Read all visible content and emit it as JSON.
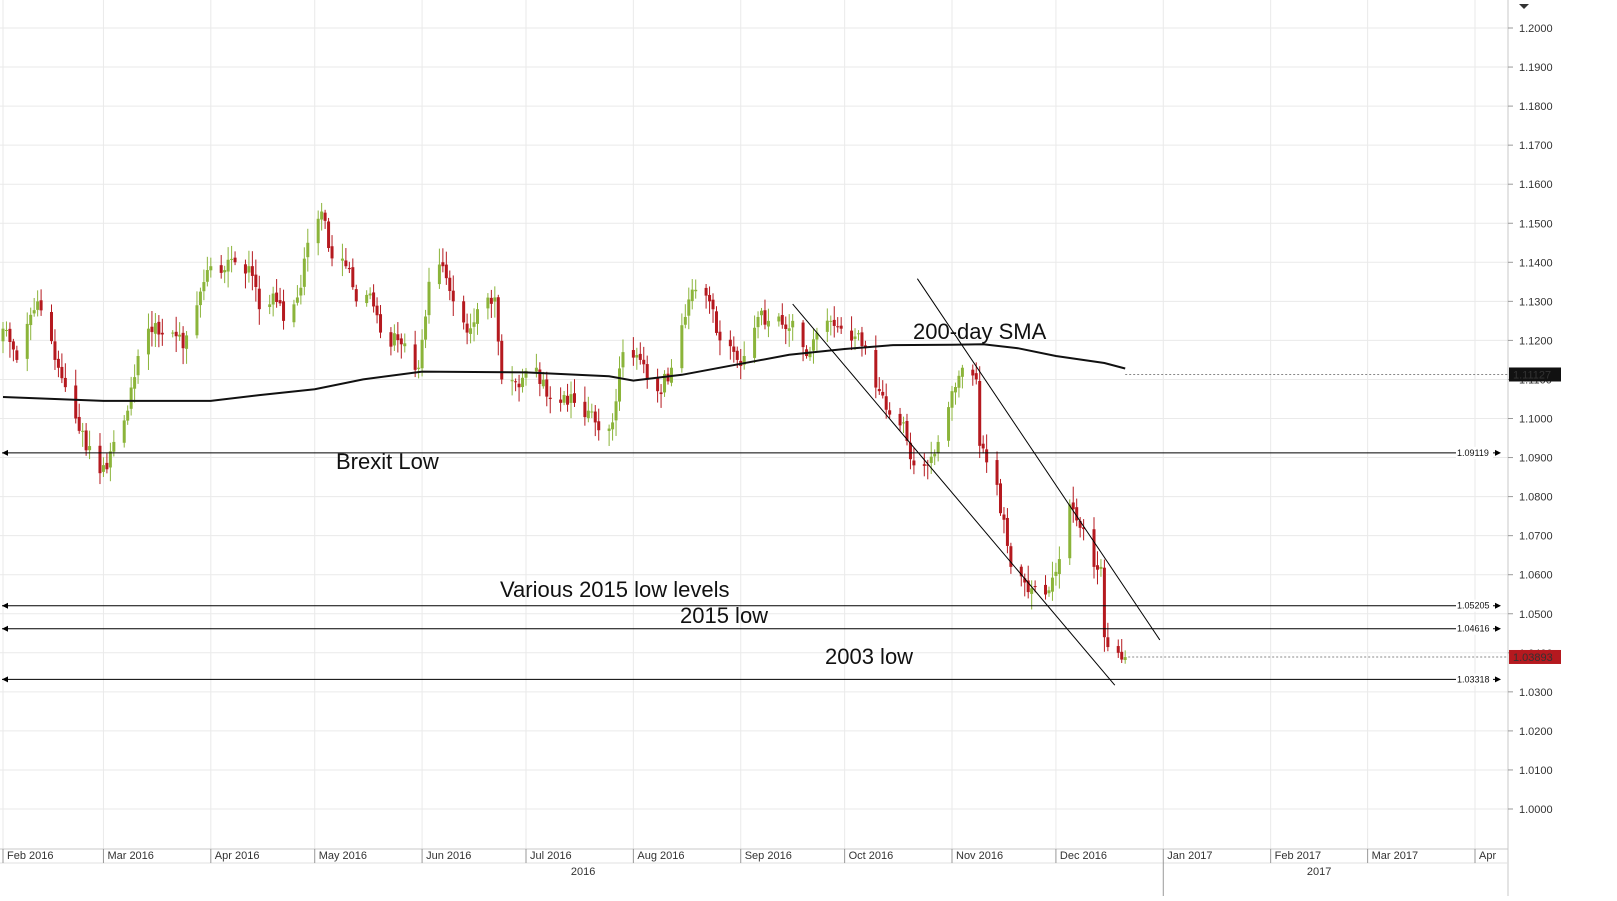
{
  "chart_data": {
    "type": "candlestick",
    "instrument_note": "",
    "y_axis": {
      "range": [
        0.9905,
        1.2205
      ],
      "ticks": [
        "1.0000",
        "1.0100",
        "1.0200",
        "1.0300",
        "1.0400",
        "1.0500",
        "1.0600",
        "1.0700",
        "1.0800",
        "1.0900",
        "1.1000",
        "1.1100",
        "1.1200",
        "1.1300",
        "1.1400",
        "1.1500",
        "1.1600",
        "1.1700",
        "1.1800",
        "1.1900",
        "1.2000"
      ],
      "position": "right"
    },
    "x_axis": {
      "months": [
        "Feb 2016",
        "Mar 2016",
        "Apr 2016",
        "May 2016",
        "Jun 2016",
        "Jul 2016",
        "Aug 2016",
        "Sep 2016",
        "Oct 2016",
        "Nov 2016",
        "Dec 2016",
        "Jan 2017",
        "Feb 2017",
        "Mar 2017",
        "Apr"
      ],
      "years": [
        "2016",
        "2017"
      ]
    },
    "grid": true,
    "anchor_points": [
      [
        "2016-02-01",
        1.123
      ],
      [
        "2016-02-05",
        1.115
      ],
      [
        "2016-02-11",
        1.13
      ],
      [
        "2016-02-16",
        1.115
      ],
      [
        "2016-02-22",
        1.1
      ],
      [
        "2016-02-29",
        1.086
      ],
      [
        "2016-03-02",
        1.087
      ],
      [
        "2016-03-08",
        1.102
      ],
      [
        "2016-03-11",
        1.116
      ],
      [
        "2016-03-14",
        1.123
      ],
      [
        "2016-03-21",
        1.122
      ],
      [
        "2016-03-24",
        1.118
      ],
      [
        "2016-03-28",
        1.129
      ],
      [
        "2016-04-01",
        1.139
      ],
      [
        "2016-04-05",
        1.138
      ],
      [
        "2016-04-08",
        1.14
      ],
      [
        "2016-04-12",
        1.139
      ],
      [
        "2016-04-15",
        1.128
      ],
      [
        "2016-04-19",
        1.132
      ],
      [
        "2016-04-22",
        1.125
      ],
      [
        "2016-04-26",
        1.131
      ],
      [
        "2016-04-29",
        1.145
      ],
      [
        "2016-05-03",
        1.153
      ],
      [
        "2016-05-06",
        1.141
      ],
      [
        "2016-05-10",
        1.139
      ],
      [
        "2016-05-13",
        1.13
      ],
      [
        "2016-05-17",
        1.132
      ],
      [
        "2016-05-20",
        1.122
      ],
      [
        "2016-05-26",
        1.119
      ],
      [
        "2016-05-31",
        1.113
      ],
      [
        "2016-06-03",
        1.135
      ],
      [
        "2016-06-07",
        1.139
      ],
      [
        "2016-06-10",
        1.13
      ],
      [
        "2016-06-14",
        1.122
      ],
      [
        "2016-06-17",
        1.128
      ],
      [
        "2016-06-22",
        1.131
      ],
      [
        "2016-06-24",
        1.11
      ],
      [
        "2016-06-29",
        1.108
      ],
      [
        "2016-07-04",
        1.113
      ],
      [
        "2016-07-08",
        1.105
      ],
      [
        "2016-07-12",
        1.106
      ],
      [
        "2016-07-15",
        1.104
      ],
      [
        "2016-07-19",
        1.102
      ],
      [
        "2016-07-22",
        1.097
      ],
      [
        "2016-07-26",
        1.099
      ],
      [
        "2016-07-29",
        1.117
      ],
      [
        "2016-08-03",
        1.115
      ],
      [
        "2016-08-08",
        1.107
      ],
      [
        "2016-08-12",
        1.113
      ],
      [
        "2016-08-16",
        1.126
      ],
      [
        "2016-08-18",
        1.133
      ],
      [
        "2016-08-23",
        1.13
      ],
      [
        "2016-08-26",
        1.12
      ],
      [
        "2016-08-31",
        1.115
      ],
      [
        "2016-09-02",
        1.116
      ],
      [
        "2016-09-06",
        1.126
      ],
      [
        "2016-09-09",
        1.125
      ],
      [
        "2016-09-13",
        1.124
      ],
      [
        "2016-09-16",
        1.125
      ],
      [
        "2016-09-20",
        1.116
      ],
      [
        "2016-09-23",
        1.122
      ],
      [
        "2016-09-27",
        1.125
      ],
      [
        "2016-09-30",
        1.123
      ],
      [
        "2016-10-04",
        1.121
      ],
      [
        "2016-10-07",
        1.118
      ],
      [
        "2016-10-11",
        1.107
      ],
      [
        "2016-10-14",
        1.101
      ],
      [
        "2016-10-18",
        1.099
      ],
      [
        "2016-10-21",
        1.088
      ],
      [
        "2016-10-25",
        1.088
      ],
      [
        "2016-10-28",
        1.094
      ],
      [
        "2016-11-01",
        1.107
      ],
      [
        "2016-11-04",
        1.113
      ],
      [
        "2016-11-08",
        1.11
      ],
      [
        "2016-11-09",
        1.093
      ],
      [
        "2016-11-14",
        1.083
      ],
      [
        "2016-11-18",
        1.062
      ],
      [
        "2016-11-22",
        1.058
      ],
      [
        "2016-11-25",
        1.057
      ],
      [
        "2016-11-29",
        1.056
      ],
      [
        "2016-12-02",
        1.064
      ],
      [
        "2016-12-05",
        1.078
      ],
      [
        "2016-12-08",
        1.072
      ],
      [
        "2016-12-12",
        1.062
      ],
      [
        "2016-12-14",
        1.062
      ],
      [
        "2016-12-15",
        1.044
      ],
      [
        "2016-12-19",
        1.04
      ],
      [
        "2016-12-21",
        1.0389
      ]
    ],
    "sma_200": [
      [
        "2016-02-01",
        1.1055
      ],
      [
        "2016-03-01",
        1.1045
      ],
      [
        "2016-04-01",
        1.1045
      ],
      [
        "2016-04-15",
        1.106
      ],
      [
        "2016-05-01",
        1.1075
      ],
      [
        "2016-05-15",
        1.11
      ],
      [
        "2016-06-01",
        1.112
      ],
      [
        "2016-07-01",
        1.1118
      ],
      [
        "2016-07-25",
        1.1108
      ],
      [
        "2016-08-01",
        1.1097
      ],
      [
        "2016-08-15",
        1.1112
      ],
      [
        "2016-09-01",
        1.114
      ],
      [
        "2016-09-15",
        1.1163
      ],
      [
        "2016-10-01",
        1.1178
      ],
      [
        "2016-10-15",
        1.1188
      ],
      [
        "2016-11-01",
        1.1189
      ],
      [
        "2016-11-10",
        1.119
      ],
      [
        "2016-11-20",
        1.118
      ],
      [
        "2016-12-01",
        1.116
      ],
      [
        "2016-12-15",
        1.1142
      ],
      [
        "2016-12-21",
        1.1128
      ]
    ],
    "horizontal_levels": [
      {
        "price": 1.09119,
        "label": "1.09119"
      },
      {
        "price": 1.05205,
        "label": "1.05205"
      },
      {
        "price": 1.04616,
        "label": "1.04616"
      },
      {
        "price": 1.03318,
        "label": "1.03318"
      }
    ],
    "channel_lines": [
      {
        "from": [
          "2016-09-16",
          1.1293
        ],
        "to": [
          "2016-12-18",
          1.0317
        ]
      },
      {
        "from": [
          "2016-10-22",
          1.1358
        ],
        "to": [
          "2016-12-31",
          1.0433
        ]
      }
    ],
    "current_price": {
      "value": 1.03893,
      "label": "1.03893"
    },
    "sma_label": {
      "value": 1.11127,
      "label": "1.11127"
    },
    "annotations": {
      "sma": "200-day SMA",
      "brexit_low": "Brexit Low",
      "various_2015": "Various 2015 low levels",
      "low_2015": "2015 low",
      "low_2003": "2003 low"
    },
    "colors": {
      "up": "#8bb43a",
      "down": "#b5191f",
      "sma": "#111111",
      "price_tag": "#b5191f",
      "sma_tag": "#111111",
      "grid": "#eaeaea"
    }
  }
}
